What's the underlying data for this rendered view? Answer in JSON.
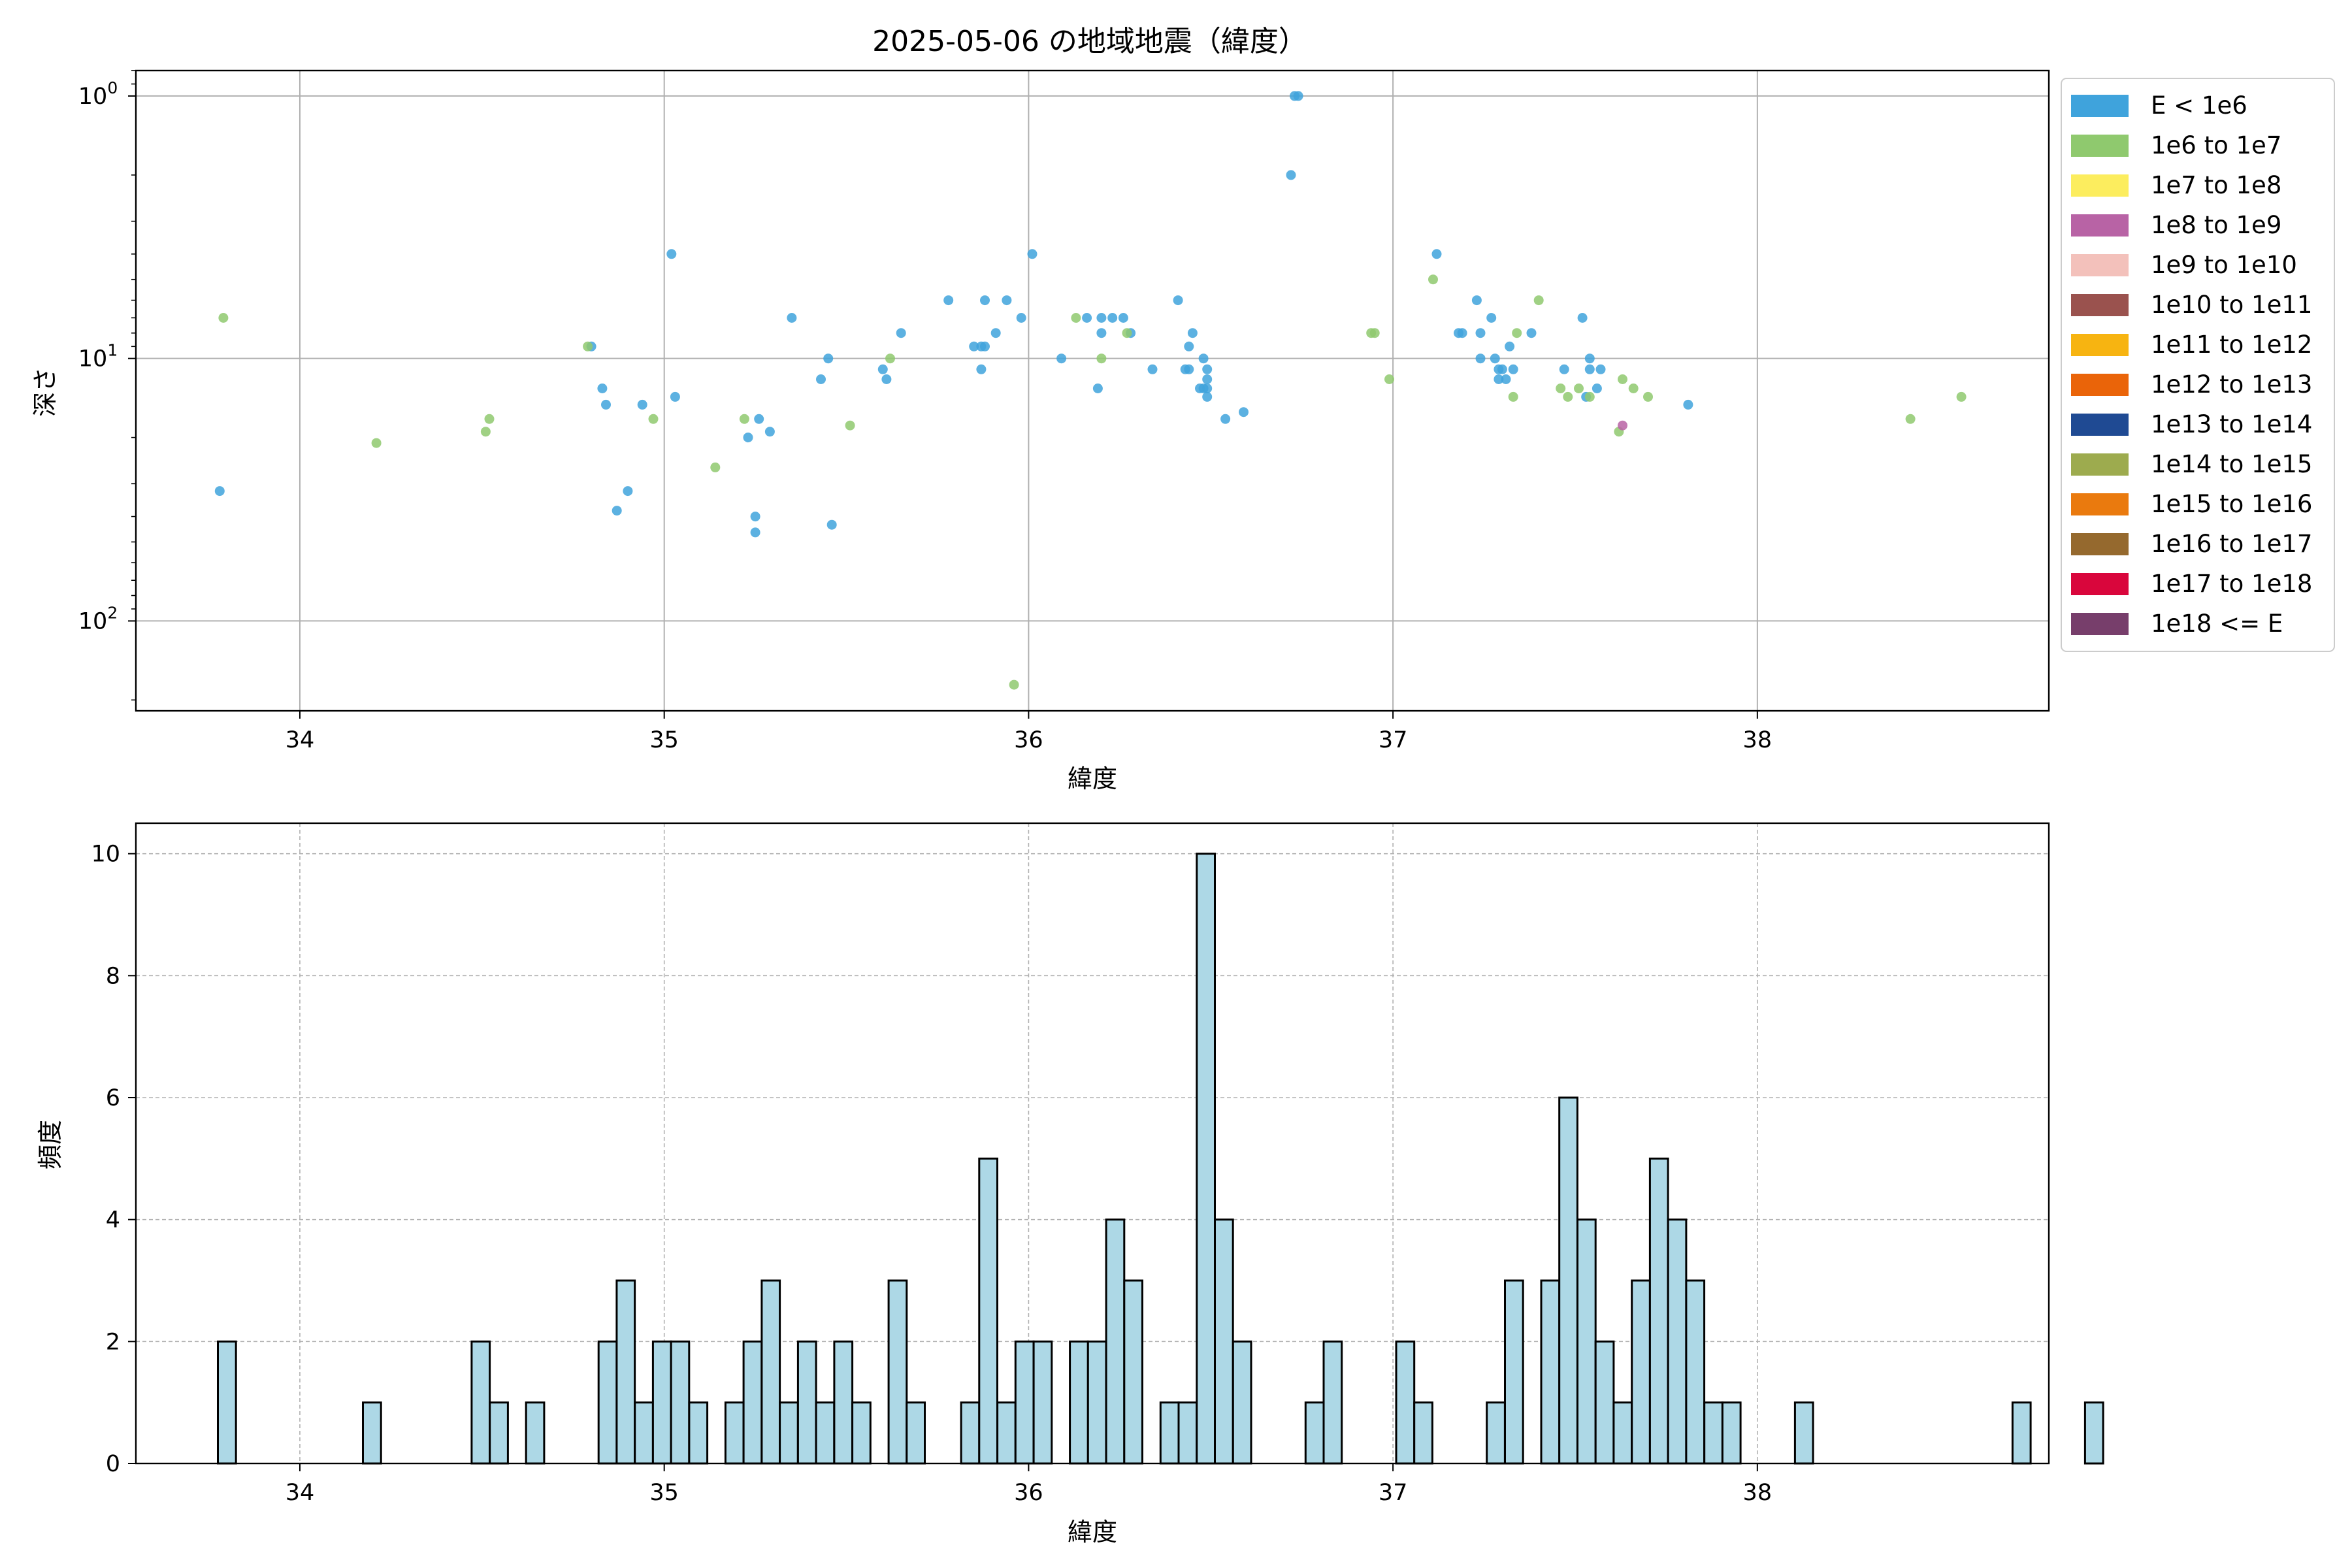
{
  "figure": {
    "title": "2025-05-06 の地域地震（緯度）"
  },
  "chart_data": [
    {
      "type": "scatter",
      "xlabel": "緯度",
      "ylabel": "深さ",
      "xlim": [
        33.55,
        38.8
      ],
      "ylim": [
        220,
        0.8
      ],
      "y_scale": "log",
      "y_inverted": true,
      "grid": true,
      "xticks": [
        "34",
        "35",
        "36",
        "37",
        "38"
      ],
      "yticks": [
        {
          "value": 1,
          "base": "10",
          "exp": "0"
        },
        {
          "value": 10,
          "base": "10",
          "exp": "1"
        },
        {
          "value": 100,
          "base": "10",
          "exp": "2"
        }
      ],
      "legend_position": "outside-right",
      "legend": [
        {
          "label": "E < 1e6",
          "color": "#3fa3dc"
        },
        {
          "label": "1e6 to 1e7",
          "color": "#8fc96e"
        },
        {
          "label": "1e7 to 1e8",
          "color": "#fced5e"
        },
        {
          "label": "1e8 to 1e9",
          "color": "#b863a5"
        },
        {
          "label": "1e9 to 1e10",
          "color": "#f3c1bb"
        },
        {
          "label": "1e10 to 1e11",
          "color": "#9a524e"
        },
        {
          "label": "1e11 to 1e12",
          "color": "#f7b411"
        },
        {
          "label": "1e12 to 1e13",
          "color": "#ea6409"
        },
        {
          "label": "1e13 to 1e14",
          "color": "#1f4a93"
        },
        {
          "label": "1e14 to 1e15",
          "color": "#9dab4e"
        },
        {
          "label": "1e15 to 1e16",
          "color": "#ea7a0e"
        },
        {
          "label": "1e16 to 1e17",
          "color": "#95692e"
        },
        {
          "label": "1e17 to 1e18",
          "color": "#d9063c"
        },
        {
          "label": "1e18 <= E",
          "color": "#773e6b"
        }
      ],
      "series": [
        {
          "class": 0,
          "points": [
            [
              33.78,
              32
            ],
            [
              34.8,
              9
            ],
            [
              34.83,
              13
            ],
            [
              34.84,
              15
            ],
            [
              34.87,
              38
            ],
            [
              34.9,
              32
            ],
            [
              34.94,
              15
            ],
            [
              35.02,
              4
            ],
            [
              35.03,
              14
            ],
            [
              35.23,
              20
            ],
            [
              35.25,
              40
            ],
            [
              35.25,
              46
            ],
            [
              35.26,
              17
            ],
            [
              35.29,
              19
            ],
            [
              35.35,
              7
            ],
            [
              35.43,
              12
            ],
            [
              35.45,
              10
            ],
            [
              35.46,
              43
            ],
            [
              35.6,
              11
            ],
            [
              35.61,
              12
            ],
            [
              35.65,
              8
            ],
            [
              35.78,
              6
            ],
            [
              35.85,
              9
            ],
            [
              35.87,
              9
            ],
            [
              35.87,
              11
            ],
            [
              35.88,
              9
            ],
            [
              35.88,
              6
            ],
            [
              35.91,
              8
            ],
            [
              35.94,
              6
            ],
            [
              35.98,
              7
            ],
            [
              36.01,
              4
            ],
            [
              36.09,
              10
            ],
            [
              36.16,
              7
            ],
            [
              36.19,
              13
            ],
            [
              36.2,
              7
            ],
            [
              36.2,
              8
            ],
            [
              36.23,
              7
            ],
            [
              36.26,
              7
            ],
            [
              36.28,
              8
            ],
            [
              36.34,
              11
            ],
            [
              36.41,
              6
            ],
            [
              36.43,
              11
            ],
            [
              36.44,
              11
            ],
            [
              36.44,
              9
            ],
            [
              36.45,
              8
            ],
            [
              36.47,
              13
            ],
            [
              36.48,
              10
            ],
            [
              36.48,
              13
            ],
            [
              36.49,
              11
            ],
            [
              36.49,
              12
            ],
            [
              36.49,
              13
            ],
            [
              36.49,
              14
            ],
            [
              36.54,
              17
            ],
            [
              36.59,
              16
            ],
            [
              36.73,
              1
            ],
            [
              36.74,
              1
            ],
            [
              36.72,
              2
            ],
            [
              37.12,
              4
            ],
            [
              37.18,
              8
            ],
            [
              37.19,
              8
            ],
            [
              37.23,
              6
            ],
            [
              37.24,
              8
            ],
            [
              37.24,
              10
            ],
            [
              37.27,
              7
            ],
            [
              37.28,
              10
            ],
            [
              37.29,
              11
            ],
            [
              37.29,
              12
            ],
            [
              37.3,
              11
            ],
            [
              37.31,
              12
            ],
            [
              37.32,
              9
            ],
            [
              37.33,
              11
            ],
            [
              37.38,
              8
            ],
            [
              37.47,
              11
            ],
            [
              37.52,
              7
            ],
            [
              37.53,
              14
            ],
            [
              37.54,
              10
            ],
            [
              37.54,
              11
            ],
            [
              37.56,
              13
            ],
            [
              37.57,
              11
            ],
            [
              37.81,
              15
            ]
          ]
        },
        {
          "class": 1,
          "points": [
            [
              33.79,
              7
            ],
            [
              34.21,
              21
            ],
            [
              34.51,
              19
            ],
            [
              34.52,
              17
            ],
            [
              34.79,
              9
            ],
            [
              34.97,
              17
            ],
            [
              35.14,
              26
            ],
            [
              35.22,
              17
            ],
            [
              35.51,
              18
            ],
            [
              35.62,
              10
            ],
            [
              35.96,
              175
            ],
            [
              36.13,
              7
            ],
            [
              36.2,
              10
            ],
            [
              36.27,
              8
            ],
            [
              36.94,
              8
            ],
            [
              36.95,
              8
            ],
            [
              36.99,
              12
            ],
            [
              37.11,
              5
            ],
            [
              37.33,
              14
            ],
            [
              37.34,
              8
            ],
            [
              37.4,
              6
            ],
            [
              37.46,
              13
            ],
            [
              37.48,
              14
            ],
            [
              37.51,
              13
            ],
            [
              37.54,
              14
            ],
            [
              37.62,
              19
            ],
            [
              37.63,
              12
            ],
            [
              37.66,
              13
            ],
            [
              37.7,
              14
            ],
            [
              38.42,
              17
            ],
            [
              38.56,
              14
            ]
          ]
        },
        {
          "class": 3,
          "points": [
            [
              37.63,
              18
            ]
          ]
        }
      ]
    },
    {
      "type": "bar",
      "subtype": "histogram",
      "xlabel": "緯度",
      "ylabel": "頻度",
      "xlim": [
        33.55,
        38.8
      ],
      "ylim": [
        0,
        10.5
      ],
      "grid": true,
      "bar_color": "#add8e6",
      "edge_color": "#000000",
      "xticks": [
        "34",
        "35",
        "36",
        "37",
        "38"
      ],
      "yticks": [
        "0",
        "2",
        "4",
        "6",
        "8",
        "10"
      ],
      "bin_start": 33.775,
      "bin_width": 0.04975,
      "counts": [
        2,
        0,
        0,
        0,
        0,
        0,
        0,
        0,
        1,
        0,
        0,
        0,
        0,
        0,
        2,
        1,
        0,
        1,
        0,
        0,
        0,
        2,
        3,
        1,
        2,
        2,
        1,
        0,
        1,
        2,
        3,
        1,
        2,
        1,
        2,
        1,
        0,
        3,
        1,
        0,
        0,
        1,
        5,
        1,
        2,
        2,
        0,
        2,
        2,
        4,
        3,
        0,
        1,
        1,
        10,
        4,
        2,
        0,
        0,
        0,
        1,
        2,
        0,
        0,
        0,
        2,
        1,
        0,
        0,
        0,
        1,
        3,
        0,
        3,
        6,
        4,
        2,
        1,
        3,
        5,
        4,
        3,
        1,
        1,
        0,
        0,
        0,
        1,
        0,
        0,
        0,
        0,
        0,
        0,
        0,
        0,
        0,
        0,
        0,
        1,
        0,
        0,
        0,
        1
      ]
    }
  ]
}
